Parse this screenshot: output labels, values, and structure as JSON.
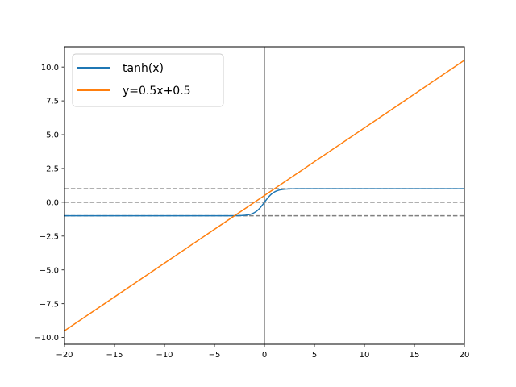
{
  "chart_data": {
    "type": "line",
    "title": "",
    "xlabel": "",
    "ylabel": "",
    "xlim": [
      -20,
      20
    ],
    "ylim": [
      -10.5,
      11.5
    ],
    "grid": false,
    "legend_position": "top-left",
    "x_ticks": [
      -20,
      -15,
      -10,
      -5,
      0,
      5,
      10,
      15,
      20
    ],
    "x_tick_labels": [
      "−20",
      "−15",
      "−10",
      "−5",
      "0",
      "5",
      "10",
      "15",
      "20"
    ],
    "y_ticks": [
      -10.0,
      -7.5,
      -5.0,
      -2.5,
      0.0,
      2.5,
      5.0,
      7.5,
      10.0
    ],
    "y_tick_labels": [
      "−10.0",
      "−7.5",
      "−5.0",
      "−2.5",
      "0.0",
      "2.5",
      "5.0",
      "7.5",
      "10.0"
    ],
    "series": [
      {
        "name": "tanh(x)",
        "color": "#1f77b4",
        "function": "tanh",
        "x": [
          -20,
          -5,
          -4,
          -3,
          -2.5,
          -2,
          -1.5,
          -1,
          -0.5,
          0,
          0.5,
          1,
          1.5,
          2,
          2.5,
          3,
          4,
          5,
          20
        ],
        "y": [
          -1.0,
          -0.9999,
          -0.9993,
          -0.9951,
          -0.9866,
          -0.964,
          -0.9051,
          -0.7616,
          -0.4621,
          0.0,
          0.4621,
          0.7616,
          0.9051,
          0.964,
          0.9866,
          0.9951,
          0.9993,
          0.9999,
          1.0
        ]
      },
      {
        "name": "y=0.5x+0.5",
        "color": "#ff7f0e",
        "function": "linear",
        "x": [
          -20,
          20
        ],
        "y": [
          -9.5,
          10.5
        ]
      }
    ],
    "reference_lines": [
      {
        "orientation": "horizontal",
        "value": 1,
        "style": "dashed",
        "color": "#808080"
      },
      {
        "orientation": "horizontal",
        "value": 0,
        "style": "dashed",
        "color": "#808080"
      },
      {
        "orientation": "horizontal",
        "value": -1,
        "style": "dashed",
        "color": "#808080"
      },
      {
        "orientation": "vertical",
        "value": 0,
        "style": "solid",
        "color": "#808080"
      }
    ]
  }
}
